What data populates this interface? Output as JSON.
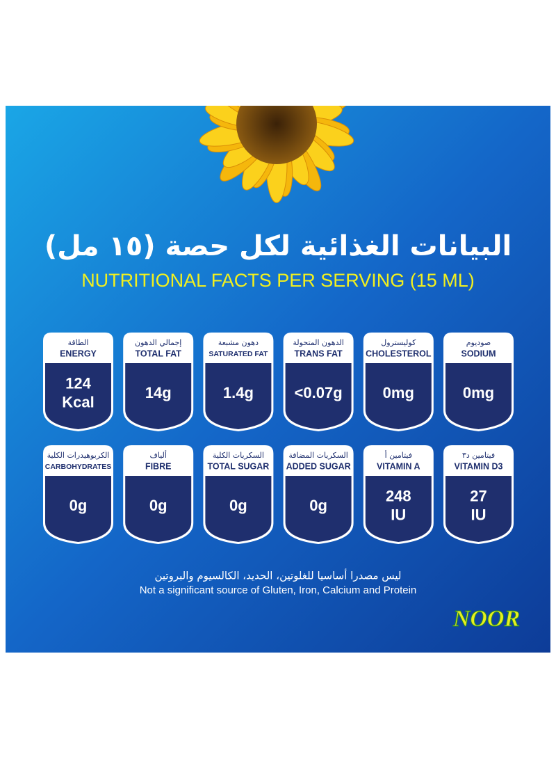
{
  "header": {
    "title_ar": "البيانات الغذائية لكل حصة (١٥ مل)",
    "title_en": "NUTRITIONAL FACTS PER SERVING (15 ML)"
  },
  "nutrients": [
    [
      {
        "ar": "الطاقة",
        "en": "ENERGY",
        "value": [
          "124",
          "Kcal"
        ]
      },
      {
        "ar": "إجمالي الدهون",
        "en": "TOTAL FAT",
        "value": [
          "14g"
        ]
      },
      {
        "ar": "دهون مشبعة",
        "en": "SATURATED FAT",
        "value": [
          "1.4g"
        ]
      },
      {
        "ar": "الدهون المتحولة",
        "en": "TRANS FAT",
        "value": [
          "<0.07g"
        ]
      },
      {
        "ar": "كوليسترول",
        "en": "CHOLESTEROL",
        "value": [
          "0mg"
        ]
      },
      {
        "ar": "صوديوم",
        "en": "SODIUM",
        "value": [
          "0mg"
        ]
      }
    ],
    [
      {
        "ar": "الكربوهيدرات الكلية",
        "en": "CARBOHYDRATES",
        "value": [
          "0g"
        ]
      },
      {
        "ar": "ألياف",
        "en": "FIBRE",
        "value": [
          "0g"
        ]
      },
      {
        "ar": "السكريات الكلية",
        "en": "TOTAL SUGAR",
        "value": [
          "0g"
        ]
      },
      {
        "ar": "السكريات المضافة",
        "en": "ADDED SUGAR",
        "value": [
          "0g"
        ]
      },
      {
        "ar": "فيتامين أ",
        "en": "VITAMIN A",
        "value": [
          "248",
          "IU"
        ]
      },
      {
        "ar": "فيتامين د٣",
        "en": "VITAMIN D3",
        "value": [
          "27",
          "IU"
        ]
      }
    ]
  ],
  "footer": {
    "note_ar": "ليس مصدرا أساسيا للغلوتين، الحديد، الكالسيوم والبروتين",
    "note_en": "Not a significant source of Gluten, Iron, Calcium and Protein",
    "logo": "NOOR"
  }
}
